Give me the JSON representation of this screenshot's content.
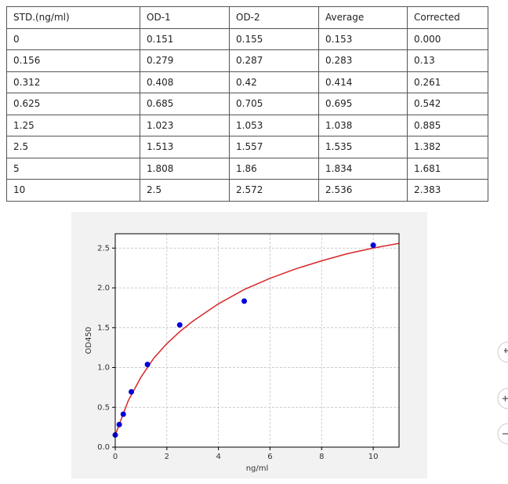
{
  "table": {
    "header": [
      "STD.(ng/ml)",
      "OD-1",
      "OD-2",
      "Average",
      "Corrected"
    ],
    "rows": [
      [
        "0",
        "0.151",
        "0.155",
        "0.153",
        "0.000"
      ],
      [
        "0.156",
        "0.279",
        "0.287",
        "0.283",
        "0.13"
      ],
      [
        "0.312",
        "0.408",
        "0.42",
        "0.414",
        "0.261"
      ],
      [
        "0.625",
        "0.685",
        "0.705",
        "0.695",
        "0.542"
      ],
      [
        "1.25",
        "1.023",
        "1.053",
        "1.038",
        "0.885"
      ],
      [
        "2.5",
        "1.513",
        "1.557",
        "1.535",
        "1.382"
      ],
      [
        "5",
        "1.808",
        "1.86",
        "1.834",
        "1.681"
      ],
      [
        "10",
        "2.5",
        "2.572",
        "2.536",
        "2.383"
      ]
    ]
  },
  "chart_data": {
    "type": "scatter",
    "x_label": "ng/ml",
    "y_label": "OD450",
    "xlim": [
      0,
      11
    ],
    "ylim": [
      0,
      2.68
    ],
    "xticks": [
      0,
      2,
      4,
      6,
      8,
      10
    ],
    "yticks": [
      {
        "value": 0,
        "label": "0.0"
      },
      {
        "value": 0.5,
        "label": "0.5"
      },
      {
        "value": 1,
        "label": "1.0"
      },
      {
        "value": 1.5,
        "label": "1.5"
      },
      {
        "value": 2,
        "label": "2.0"
      },
      {
        "value": 2.5,
        "label": "2.5"
      }
    ],
    "grid": true,
    "series": [
      {
        "kind": "points",
        "color": "#0000dd",
        "x": [
          0,
          0.156,
          0.312,
          0.625,
          1.25,
          2.5,
          5,
          10
        ],
        "values": [
          0.153,
          0.283,
          0.414,
          0.695,
          1.038,
          1.535,
          1.834,
          2.536
        ]
      },
      {
        "kind": "line",
        "color": "#d62728",
        "x": [
          0,
          0.5,
          1,
          1.5,
          2,
          2.5,
          3,
          4,
          5,
          6,
          7,
          8,
          9,
          10,
          11
        ],
        "values": [
          0.15,
          0.58,
          0.88,
          1.12,
          1.3,
          1.45,
          1.58,
          1.8,
          1.98,
          2.12,
          2.24,
          2.34,
          2.43,
          2.5,
          2.56
        ]
      }
    ]
  }
}
